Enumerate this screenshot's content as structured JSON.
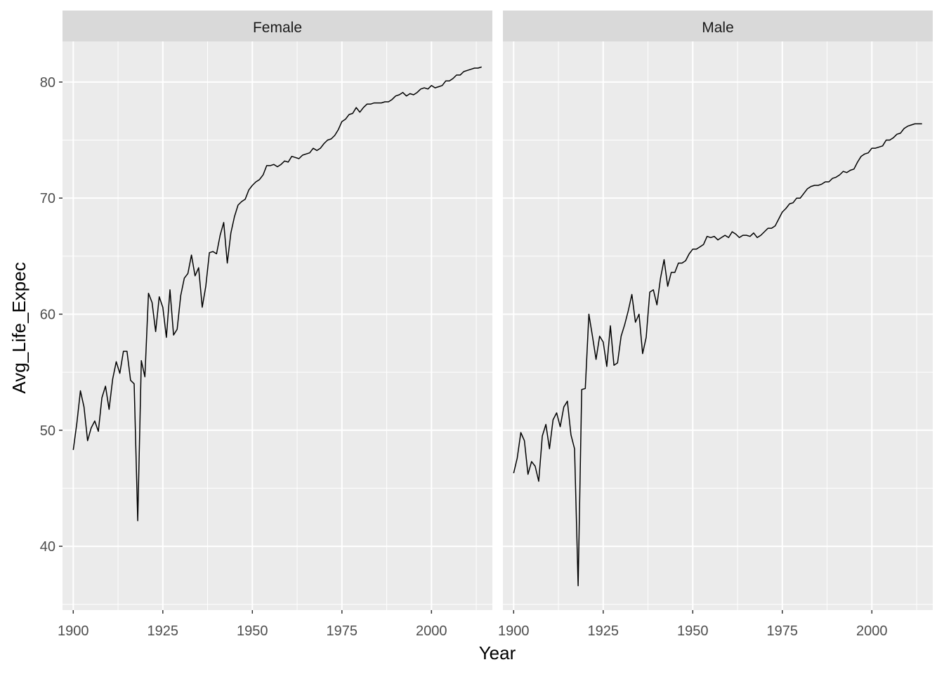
{
  "chart_data": {
    "type": "line",
    "facets": [
      "Female",
      "Male"
    ],
    "xlabel": "Year",
    "ylabel": "Avg_Life_Expec",
    "xlim": [
      1897,
      2017
    ],
    "ylim": [
      34.5,
      83.5
    ],
    "xticks": [
      1900,
      1925,
      1950,
      1975,
      2000
    ],
    "yticks": [
      40,
      50,
      60,
      70,
      80
    ],
    "grid": true,
    "x": [
      1900,
      1901,
      1902,
      1903,
      1904,
      1905,
      1906,
      1907,
      1908,
      1909,
      1910,
      1911,
      1912,
      1913,
      1914,
      1915,
      1916,
      1917,
      1918,
      1919,
      1920,
      1921,
      1922,
      1923,
      1924,
      1925,
      1926,
      1927,
      1928,
      1929,
      1930,
      1931,
      1932,
      1933,
      1934,
      1935,
      1936,
      1937,
      1938,
      1939,
      1940,
      1941,
      1942,
      1943,
      1944,
      1945,
      1946,
      1947,
      1948,
      1949,
      1950,
      1951,
      1952,
      1953,
      1954,
      1955,
      1956,
      1957,
      1958,
      1959,
      1960,
      1961,
      1962,
      1963,
      1964,
      1965,
      1966,
      1967,
      1968,
      1969,
      1970,
      1971,
      1972,
      1973,
      1974,
      1975,
      1976,
      1977,
      1978,
      1979,
      1980,
      1981,
      1982,
      1983,
      1984,
      1985,
      1986,
      1987,
      1988,
      1989,
      1990,
      1991,
      1992,
      1993,
      1994,
      1995,
      1996,
      1997,
      1998,
      1999,
      2000,
      2001,
      2002,
      2003,
      2004,
      2005,
      2006,
      2007,
      2008,
      2009,
      2010,
      2011,
      2012,
      2013,
      2014
    ],
    "series": [
      {
        "name": "Female",
        "values": [
          48.3,
          50.6,
          53.4,
          52.0,
          49.1,
          50.2,
          50.8,
          49.9,
          52.8,
          53.8,
          51.8,
          54.4,
          55.9,
          54.9,
          56.8,
          56.8,
          54.3,
          54.0,
          42.2,
          56.0,
          54.6,
          61.8,
          61.0,
          58.5,
          61.5,
          60.6,
          58.0,
          62.1,
          58.2,
          58.7,
          61.6,
          63.1,
          63.5,
          65.1,
          63.3,
          64.0,
          60.6,
          62.4,
          65.3,
          65.4,
          65.2,
          66.8,
          67.9,
          64.4,
          67.0,
          68.4,
          69.4,
          69.7,
          69.9,
          70.7,
          71.1,
          71.4,
          71.6,
          72.0,
          72.8,
          72.8,
          72.9,
          72.7,
          72.9,
          73.2,
          73.1,
          73.6,
          73.5,
          73.4,
          73.7,
          73.8,
          73.9,
          74.3,
          74.1,
          74.3,
          74.7,
          75.0,
          75.1,
          75.4,
          75.9,
          76.6,
          76.8,
          77.2,
          77.3,
          77.8,
          77.4,
          77.8,
          78.1,
          78.1,
          78.2,
          78.2,
          78.2,
          78.3,
          78.3,
          78.5,
          78.8,
          78.9,
          79.1,
          78.8,
          79.0,
          78.9,
          79.1,
          79.4,
          79.5,
          79.4,
          79.7,
          79.5,
          79.6,
          79.7,
          80.1,
          80.1,
          80.3,
          80.6,
          80.6,
          80.9,
          81.0,
          81.1,
          81.2,
          81.2,
          81.3
        ]
      },
      {
        "name": "Male",
        "values": [
          46.3,
          47.6,
          49.8,
          49.1,
          46.2,
          47.3,
          46.9,
          45.6,
          49.5,
          50.5,
          48.4,
          50.9,
          51.5,
          50.3,
          52.0,
          52.5,
          49.6,
          48.4,
          36.6,
          53.5,
          53.6,
          60.0,
          58.1,
          56.1,
          58.1,
          57.6,
          55.5,
          59.0,
          55.6,
          55.8,
          58.1,
          59.1,
          60.3,
          61.7,
          59.3,
          60.0,
          56.6,
          58.0,
          61.9,
          62.1,
          60.8,
          63.1,
          64.7,
          62.4,
          63.6,
          63.6,
          64.4,
          64.4,
          64.6,
          65.2,
          65.6,
          65.6,
          65.8,
          66.0,
          66.7,
          66.6,
          66.7,
          66.4,
          66.6,
          66.8,
          66.6,
          67.1,
          66.9,
          66.6,
          66.8,
          66.8,
          66.7,
          67.0,
          66.6,
          66.8,
          67.1,
          67.4,
          67.4,
          67.6,
          68.2,
          68.8,
          69.1,
          69.5,
          69.6,
          70.0,
          70.0,
          70.4,
          70.8,
          71.0,
          71.1,
          71.1,
          71.2,
          71.4,
          71.4,
          71.7,
          71.8,
          72.0,
          72.3,
          72.2,
          72.4,
          72.5,
          73.1,
          73.6,
          73.8,
          73.9,
          74.3,
          74.3,
          74.4,
          74.5,
          75.0,
          75.0,
          75.2,
          75.5,
          75.6,
          76.0,
          76.2,
          76.3,
          76.4,
          76.4,
          76.4
        ]
      }
    ]
  }
}
